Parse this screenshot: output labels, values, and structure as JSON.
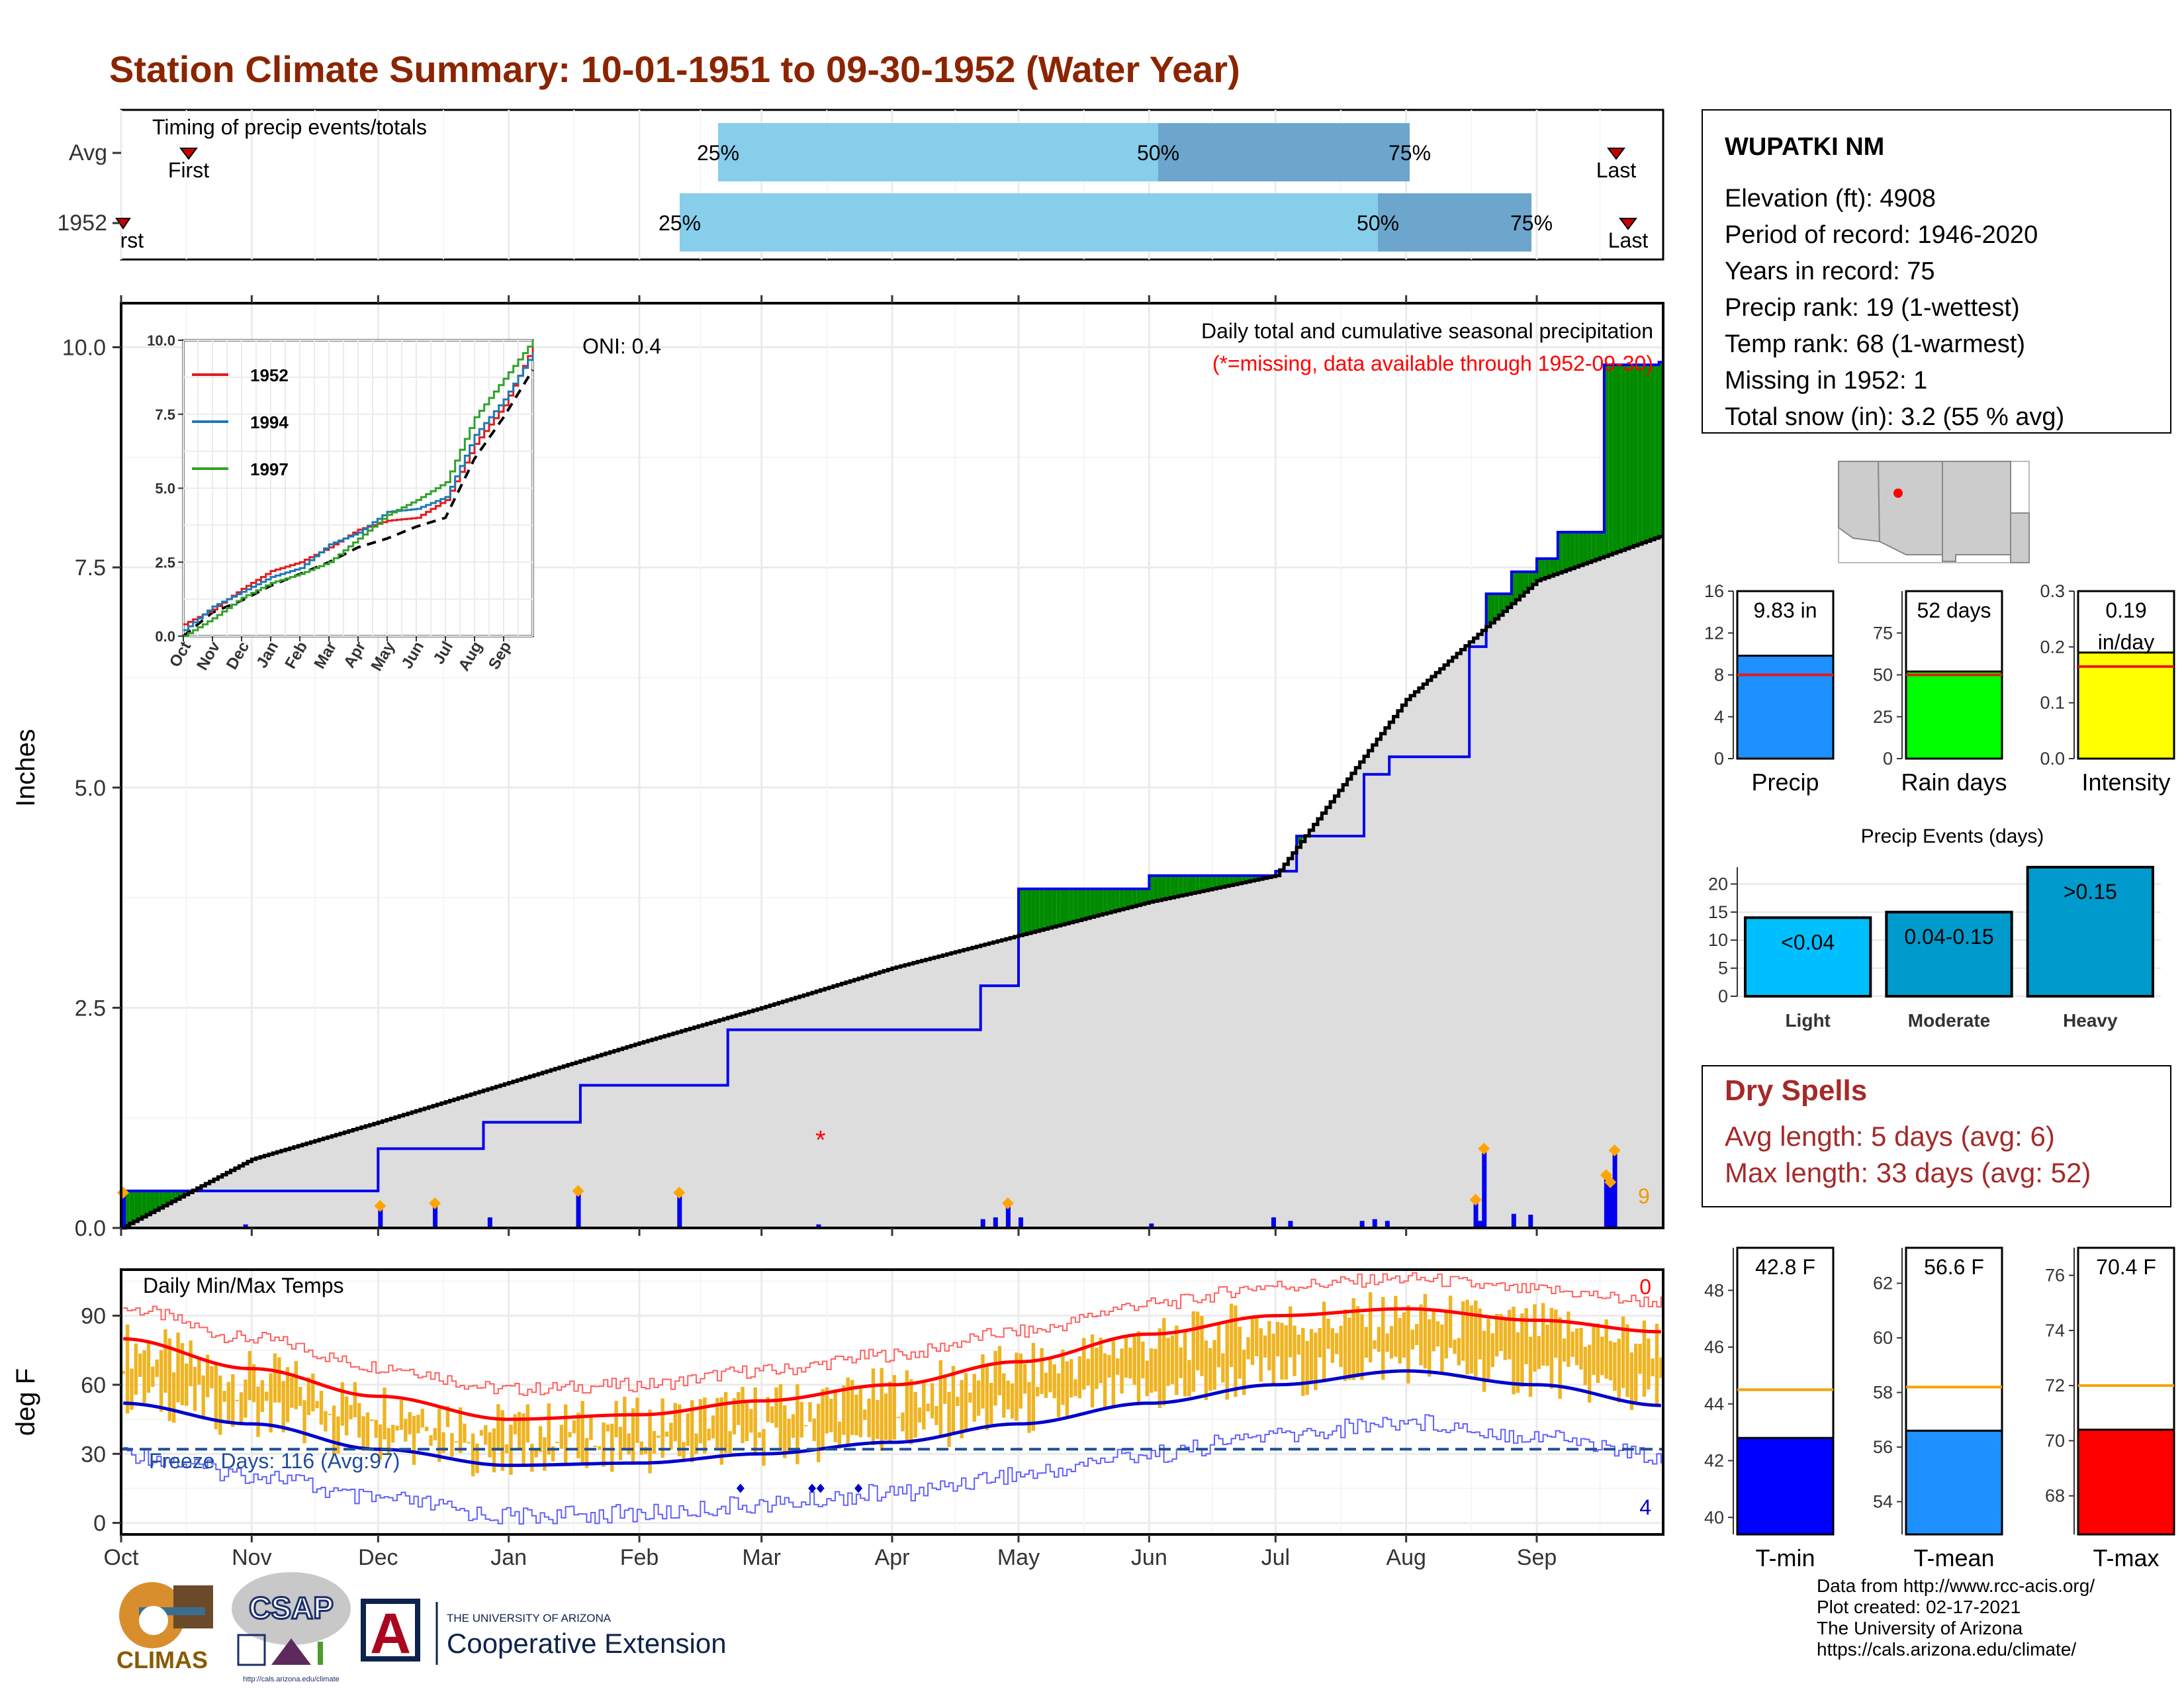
{
  "title": "Station Climate Summary: 10-01-1951 to 09-30-1952 (Water Year)",
  "colors": {
    "title": "#8B2500",
    "precip_light_blue": "#87CEEB",
    "precip_mid_blue": "#6CA6CD",
    "cum_green": "#008B00",
    "cum_brown": "#8B5A00",
    "avg_gray": "#DDDDDD",
    "daily_bar": "#0000EE",
    "temp_bar": "#EEB422",
    "tmax_line": "#FF0000",
    "tmin_line": "#0000CD",
    "dry_spells": "#A52A2A"
  },
  "timing_panel": {
    "title": "Timing of precip events/totals",
    "rows": [
      {
        "label": "Avg",
        "first_label": "First",
        "last_label": "Last",
        "q25": "25%",
        "q50": "50%",
        "q75": "75%"
      },
      {
        "label": "1952",
        "first_label": "First",
        "last_label": "Last",
        "q25": "25%",
        "q50": "50%",
        "q75": "75%"
      }
    ]
  },
  "precip_panel": {
    "ylabel": "Inches",
    "label_main": "Daily total and cumulative seasonal precipitation",
    "label_missing": "(*=missing, data available through 1952-09-30)",
    "oni": "ONI: 0.4",
    "count_label": "9",
    "missing_marker": "*",
    "yticks": [
      "0.0",
      "2.5",
      "5.0",
      "7.5",
      "10.0"
    ]
  },
  "inset": {
    "yticks": [
      "0.0",
      "2.5",
      "5.0",
      "7.5",
      "10.0"
    ],
    "xticks": [
      "Oct",
      "Nov",
      "Dec",
      "Jan",
      "Feb",
      "Mar",
      "Apr",
      "May",
      "Jun",
      "Jul",
      "Aug",
      "Sep"
    ],
    "legend": [
      {
        "name": "1952",
        "color": "#E31A1C"
      },
      {
        "name": "1994",
        "color": "#1F78B4"
      },
      {
        "name": "1997",
        "color": "#33A02C"
      }
    ]
  },
  "temp_panel": {
    "ylabel": "deg F",
    "title": "Daily Min/Max Temps",
    "freeze_label": "Freeze Days: 116 (Avg:97)",
    "count_hot": "0",
    "count_cold": "4",
    "yticks": [
      "0",
      "30",
      "60",
      "90"
    ]
  },
  "months": [
    "Oct",
    "Nov",
    "Dec",
    "Jan",
    "Feb",
    "Mar",
    "Apr",
    "May",
    "Jun",
    "Jul",
    "Aug",
    "Sep"
  ],
  "station_info": {
    "name": "WUPATKI NM",
    "lines": [
      "Elevation (ft): 4908",
      "Period of record: 1946-2020",
      "Years in record: 75",
      "Precip rank: 19 (1-wettest)",
      "Temp rank: 68 (1-warmest)",
      "Missing in 1952: 1",
      "Total snow (in): 3.2 (55 % avg)"
    ]
  },
  "dry_spells": {
    "title": "Dry Spells",
    "avg": "Avg length: 5 days (avg: 6)",
    "max": "Max length: 33 days (avg: 52)"
  },
  "precip_events_title": "Precip Events (days)",
  "credits": [
    "Data from http://www.rcc-acis.org/",
    "Plot created: 02-17-2021",
    "The University of Arizona",
    "https://cals.arizona.edu/climate/"
  ],
  "logos": {
    "climas": "CLIMAS",
    "csap": "CSAP",
    "csap_url": "http://cals.arizona.edu/climate",
    "ua_small": "THE UNIVERSITY OF ARIZONA",
    "ua_big": "Cooperative Extension",
    "ua_letter": "A"
  },
  "chart_data": [
    {
      "type": "area",
      "title": "Daily total and cumulative seasonal precipitation",
      "xlabel": "",
      "ylabel": "Inches",
      "ylim": [
        0,
        10.5
      ],
      "x_start": "1951-10-01",
      "x_end": "1952-09-30",
      "cumulative_1952": {
        "dates": [
          "1951-10-01",
          "1951-12-01",
          "1951-12-26",
          "1952-01-18",
          "1952-02-22",
          "1952-04-22",
          "1952-05-01",
          "1952-06-01",
          "1952-07-01",
          "1952-07-06",
          "1952-07-22",
          "1952-07-28",
          "1952-08-16",
          "1952-08-20",
          "1952-08-26",
          "1952-09-01",
          "1952-09-06",
          "1952-09-17",
          "1952-09-30"
        ],
        "values": [
          0.42,
          0.9,
          1.2,
          1.62,
          2.25,
          2.75,
          3.85,
          4.0,
          4.05,
          4.45,
          5.15,
          5.35,
          6.6,
          7.2,
          7.45,
          7.6,
          7.9,
          9.8,
          9.83
        ]
      },
      "average": {
        "dates": [
          "1951-10-01",
          "1951-11-01",
          "1951-12-01",
          "1952-01-01",
          "1952-02-01",
          "1952-03-01",
          "1952-04-01",
          "1952-05-01",
          "1952-06-01",
          "1952-07-01",
          "1952-08-01",
          "1952-09-01",
          "1952-09-30"
        ],
        "values": [
          0.0,
          0.78,
          1.2,
          1.65,
          2.1,
          2.5,
          2.95,
          3.32,
          3.7,
          4.0,
          6.0,
          7.35,
          7.85
        ]
      },
      "daily_1952": {
        "dates": [
          "1951-10-01",
          "1951-10-30",
          "1951-12-01",
          "1951-12-14",
          "1951-12-27",
          "1952-01-17",
          "1952-02-10",
          "1952-03-14",
          "1952-04-22",
          "1952-04-25",
          "1952-04-28",
          "1952-05-01",
          "1952-06-01",
          "1952-06-30",
          "1952-07-04",
          "1952-07-21",
          "1952-07-24",
          "1952-07-27",
          "1952-08-17",
          "1952-08-18",
          "1952-08-19",
          "1952-08-26",
          "1952-08-30",
          "1952-09-17",
          "1952-09-18",
          "1952-09-19"
        ],
        "values": [
          0.4,
          0.04,
          0.25,
          0.28,
          0.12,
          0.42,
          0.4,
          0.04,
          0.1,
          0.12,
          0.28,
          0.12,
          0.05,
          0.12,
          0.08,
          0.08,
          0.1,
          0.08,
          0.32,
          0.08,
          0.9,
          0.16,
          0.15,
          0.6,
          0.52,
          0.88
        ]
      },
      "missing": [
        "1952-03-15"
      ]
    },
    {
      "type": "line",
      "title": "",
      "xticks": [
        "Oct",
        "Nov",
        "Dec",
        "Jan",
        "Feb",
        "Mar",
        "Apr",
        "May",
        "Jun",
        "Jul",
        "Aug",
        "Sep"
      ],
      "ylim": [
        0,
        10
      ],
      "series": [
        {
          "name": "1952",
          "x": [
            "Oct",
            "Nov",
            "Dec",
            "Jan",
            "Feb",
            "Mar",
            "Apr",
            "May",
            "Jun",
            "Jul",
            "Aug",
            "Sep",
            "Sep-end"
          ],
          "values": [
            0.4,
            0.9,
            1.6,
            2.2,
            2.5,
            3.0,
            3.6,
            3.9,
            4.0,
            4.6,
            6.5,
            7.8,
            9.8
          ]
        },
        {
          "name": "1994",
          "x": [
            "Oct",
            "Nov",
            "Dec",
            "Jan",
            "Feb",
            "Mar",
            "Apr",
            "May",
            "Jun",
            "Jul",
            "Aug",
            "Sep",
            "Sep-end"
          ],
          "values": [
            0.2,
            1.0,
            1.5,
            2.0,
            2.3,
            3.1,
            3.5,
            4.2,
            4.3,
            4.7,
            6.8,
            8.0,
            9.6
          ]
        },
        {
          "name": "1997",
          "x": [
            "Oct",
            "Nov",
            "Dec",
            "Jan",
            "Feb",
            "Mar",
            "Apr",
            "May",
            "Jun",
            "Jul",
            "Aug",
            "Sep",
            "Sep-end"
          ],
          "values": [
            0.0,
            0.6,
            1.3,
            1.8,
            2.1,
            2.5,
            3.3,
            4.1,
            4.6,
            5.2,
            7.4,
            8.7,
            10.0
          ]
        },
        {
          "name": "Average",
          "x": [
            "Oct",
            "Nov",
            "Dec",
            "Jan",
            "Feb",
            "Mar",
            "Apr",
            "May",
            "Jun",
            "Jul",
            "Aug",
            "Sep",
            "Sep-end"
          ],
          "values": [
            0.0,
            0.8,
            1.2,
            1.7,
            2.1,
            2.5,
            3.0,
            3.3,
            3.7,
            4.0,
            6.0,
            7.4,
            9.0
          ]
        }
      ]
    },
    {
      "type": "bar",
      "title": "",
      "categories": [
        "Precip",
        "Rain days",
        "Intensity"
      ],
      "values": [
        9.83,
        52,
        0.19
      ],
      "value_labels": [
        "9.83 in",
        "52 days",
        "0.19 in/day"
      ],
      "averages": [
        8.0,
        50,
        0.165
      ],
      "colors": [
        "#1E90FF",
        "#00FF00",
        "#FFFF00"
      ],
      "ylims": [
        [
          0,
          16
        ],
        [
          0,
          100
        ],
        [
          0,
          0.3
        ]
      ],
      "yticks": [
        [
          "0",
          "4",
          "8",
          "12",
          "16"
        ],
        [
          "0",
          "25",
          "50",
          "75"
        ],
        [
          "0.0",
          "0.1",
          "0.2",
          "0.3"
        ]
      ]
    },
    {
      "type": "bar",
      "title": "Precip Events (days)",
      "categories": [
        "Light",
        "Moderate",
        "Heavy"
      ],
      "value_labels": [
        "<0.04",
        "0.04-0.15",
        ">0.15"
      ],
      "values": [
        14,
        15,
        23
      ],
      "colors": [
        "#00BFFF",
        "#009ACD",
        "#009ACD"
      ],
      "ylim": [
        0,
        23
      ],
      "yticks": [
        "0",
        "5",
        "10",
        "15",
        "20"
      ]
    },
    {
      "type": "line",
      "title": "Daily Min/Max Temps",
      "ylabel": "deg F",
      "ylim": [
        -5,
        110
      ],
      "yticks": [
        0,
        30,
        60,
        90
      ],
      "avg_tmax": {
        "months": [
          "Oct",
          "Nov",
          "Dec",
          "Jan",
          "Feb",
          "Mar",
          "Apr",
          "May",
          "Jun",
          "Jul",
          "Aug",
          "Sep",
          "Sep-end"
        ],
        "values": [
          80,
          67,
          55,
          45,
          47,
          53,
          60,
          70,
          82,
          90,
          93,
          88,
          83
        ]
      },
      "avg_tmin": {
        "months": [
          "Oct",
          "Nov",
          "Dec",
          "Jan",
          "Feb",
          "Mar",
          "Apr",
          "May",
          "Jun",
          "Jul",
          "Aug",
          "Sep",
          "Sep-end"
        ],
        "values": [
          52,
          43,
          32,
          25,
          26,
          30,
          35,
          43,
          52,
          60,
          66,
          60,
          51
        ]
      },
      "freeze_line": 32
    },
    {
      "type": "bar",
      "title": "",
      "categories": [
        "T-min",
        "T-mean",
        "T-max"
      ],
      "values": [
        42.8,
        56.6,
        70.4
      ],
      "value_labels": [
        "42.8 F",
        "56.6 F",
        "70.4 F"
      ],
      "averages": [
        44.5,
        58.2,
        72.0
      ],
      "colors": [
        "#0000FF",
        "#1E90FF",
        "#FF0000"
      ],
      "ylims": [
        [
          39.4,
          49.5
        ],
        [
          52.8,
          63.3
        ],
        [
          66.6,
          77.0
        ]
      ],
      "yticks": [
        [
          "40",
          "42",
          "44",
          "46",
          "48"
        ],
        [
          "54",
          "56",
          "58",
          "60",
          "62"
        ],
        [
          "68",
          "70",
          "72",
          "74",
          "76"
        ]
      ]
    }
  ]
}
